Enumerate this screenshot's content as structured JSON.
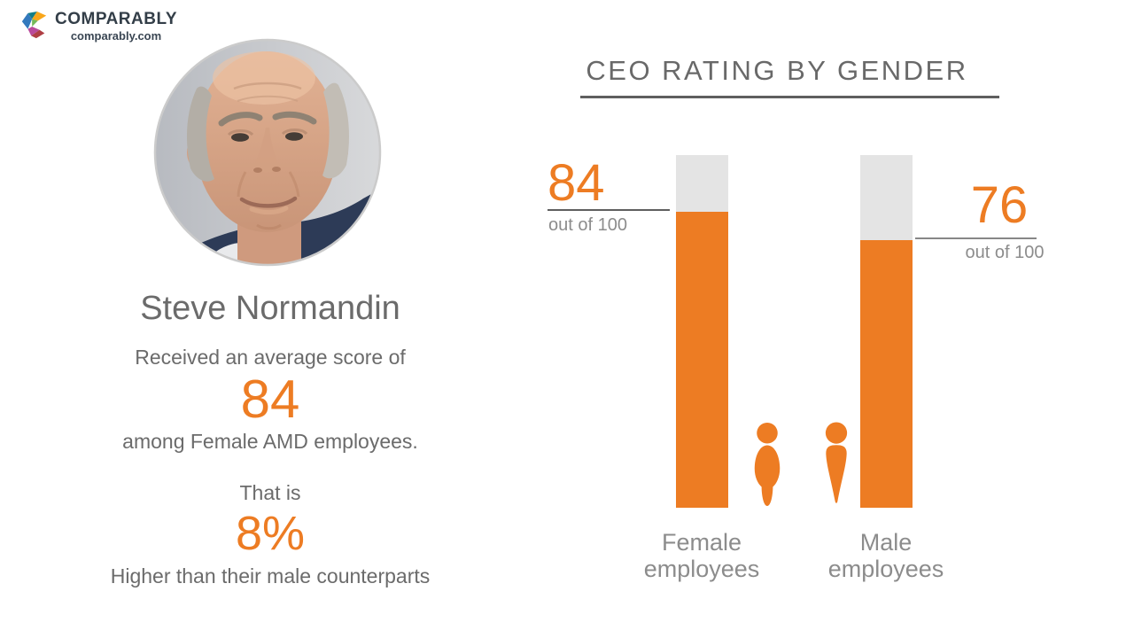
{
  "brand": {
    "name": "COMPARABLY",
    "url": "comparably.com"
  },
  "profile": {
    "name": "Steve Normandin",
    "intro": "Received an average score of",
    "score": "84",
    "among": "among Female AMD employees.",
    "that_is": "That is",
    "percent": "8%",
    "comparison": "Higher than their male counterparts"
  },
  "chart": {
    "title": "CEO RATING BY GENDER",
    "out_of_label": "out of 100",
    "female_label_line1": "Female",
    "female_label_line2": "employees",
    "male_label_line1": "Male",
    "male_label_line2": "employees"
  },
  "chart_data": {
    "type": "bar",
    "title": "CEO RATING BY GENDER",
    "categories": [
      "Female employees",
      "Male employees"
    ],
    "values": [
      84,
      76
    ],
    "ylim": [
      0,
      100
    ],
    "unit": "out of 100",
    "bar_color": "#ED7C23",
    "track_color": "#E4E4E4",
    "legend": "none",
    "grid": false
  },
  "icons": {
    "logo": "comparably-hex-logo",
    "female": "female-person-pictogram",
    "male": "male-person-pictogram"
  },
  "colors": {
    "accent_orange": "#ED7C23",
    "track_gray": "#E4E4E4",
    "text_gray": "#6B6B6B",
    "label_gray": "#8C8C8C",
    "brand_navy": "#333E48"
  }
}
